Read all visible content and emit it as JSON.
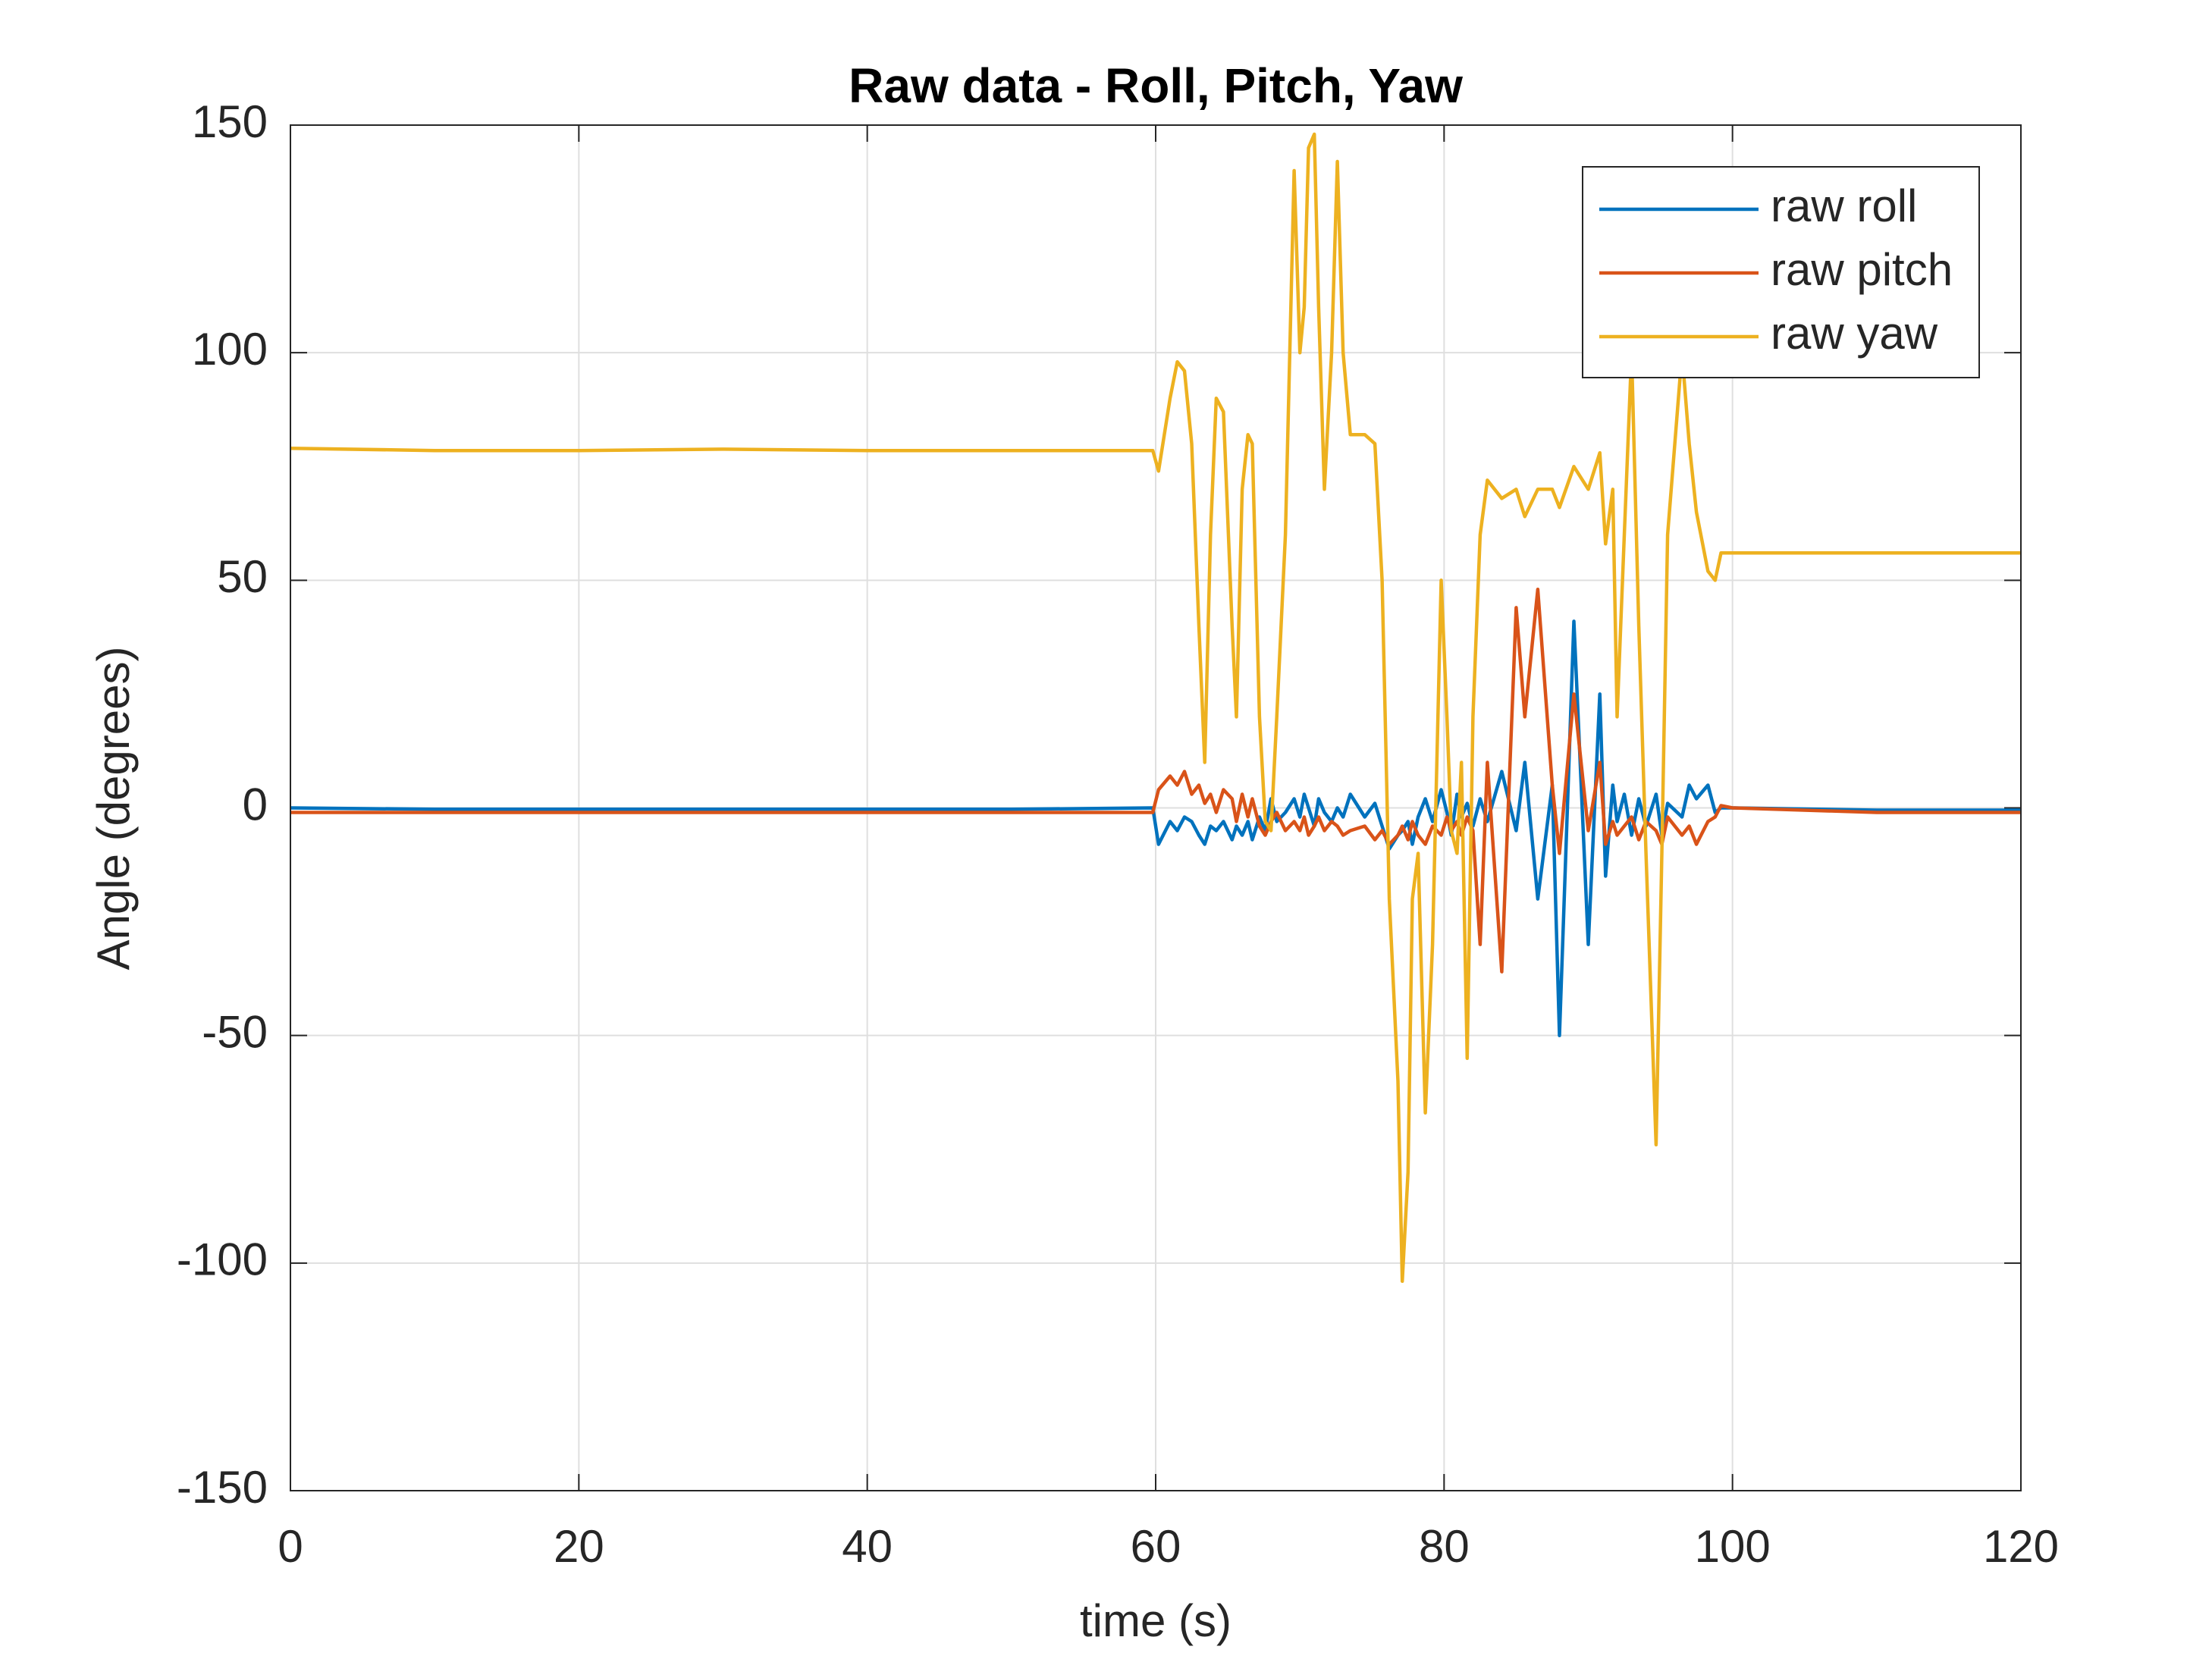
{
  "chart_data": {
    "type": "line",
    "title": "Raw data - Roll, Pitch, Yaw",
    "x_label": "time (s)",
    "y_label": "Angle (degrees)",
    "xlim": [
      0,
      120
    ],
    "xticks": [
      0,
      20,
      40,
      60,
      80,
      100,
      120
    ],
    "ylim": [
      -150,
      150
    ],
    "yticks": [
      -150,
      -100,
      -50,
      0,
      50,
      100,
      150
    ],
    "grid": true,
    "legend": "northeast",
    "x": [
      0,
      10,
      20,
      30,
      40,
      50,
      59.8,
      60.2,
      61,
      61.5,
      62,
      62.5,
      63,
      63.4,
      63.8,
      64.2,
      64.7,
      65.3,
      65.6,
      66,
      66.4,
      66.7,
      67.2,
      67.6,
      68,
      68.4,
      69,
      69.6,
      70,
      70.3,
      70.6,
      71,
      71.3,
      71.7,
      72.2,
      72.6,
      73,
      73.5,
      74.5,
      75.2,
      75.7,
      76.2,
      76.8,
      77.1,
      77.5,
      77.8,
      78.2,
      78.7,
      79.2,
      79.8,
      80.2,
      80.5,
      80.9,
      81.2,
      81.6,
      82,
      82.5,
      83,
      84,
      85,
      85.6,
      86.5,
      87.5,
      88,
      89,
      90,
      90.8,
      91.2,
      91.7,
      92,
      92.5,
      93,
      93.5,
      94,
      94.7,
      95.1,
      95.5,
      96.5,
      97,
      97.5,
      98.3,
      98.8,
      99.2,
      100,
      110,
      120
    ],
    "series": [
      {
        "name": "raw roll",
        "color": "#0072BD",
        "values": [
          0,
          -0.3,
          -0.3,
          -0.3,
          -0.3,
          -0.3,
          0,
          -8,
          -3,
          -5,
          -2,
          -3,
          -6,
          -8,
          -4,
          -5,
          -3,
          -7,
          -4,
          -6,
          -3,
          -7,
          -2,
          -5,
          2,
          -3,
          -1,
          2,
          -2,
          3,
          0,
          -4,
          2,
          -1,
          -3,
          0,
          -2,
          3,
          -2,
          1,
          -4,
          -9,
          -6,
          -5,
          -3,
          -8,
          -2,
          2,
          -3,
          4,
          -1,
          -6,
          3,
          -2,
          1,
          -4,
          2,
          -3,
          8,
          -5,
          10,
          -20,
          5,
          -50,
          41,
          -30,
          25,
          -15,
          5,
          -3,
          3,
          -6,
          2,
          -4,
          3,
          -6,
          1,
          -2,
          5,
          2,
          5,
          -1,
          0,
          0,
          -0.5,
          -0.5
        ]
      },
      {
        "name": "raw pitch",
        "color": "#D95319",
        "values": [
          -1,
          -1,
          -1,
          -1,
          -1,
          -1,
          -1,
          4,
          7,
          5,
          8,
          3,
          5,
          1,
          3,
          -1,
          4,
          2,
          -3,
          3,
          -2,
          2,
          -4,
          -6,
          -3,
          -1,
          -5,
          -3,
          -5,
          -2,
          -6,
          -4,
          -2,
          -5,
          -3,
          -4,
          -6,
          -5,
          -4,
          -7,
          -5,
          -8,
          -6,
          -4,
          -7,
          -3,
          -6,
          -8,
          -4,
          -6,
          -2,
          -5,
          -3,
          -6,
          -2,
          -5,
          -30,
          10,
          -36,
          44,
          20,
          48,
          5,
          -10,
          25,
          -5,
          10,
          -8,
          -3,
          -6,
          -4,
          -2,
          -7,
          -3,
          -5,
          -8,
          -2,
          -6,
          -4,
          -8,
          -3,
          -2,
          0.5,
          0,
          -1,
          -1
        ]
      },
      {
        "name": "raw yaw",
        "color": "#EDB120",
        "values": [
          79,
          78.5,
          78.5,
          78.8,
          78.5,
          78.5,
          78.5,
          74,
          90,
          98,
          96,
          80,
          40,
          10,
          60,
          90,
          87,
          40,
          20,
          70,
          82,
          80,
          20,
          -3,
          -5,
          20,
          60,
          140,
          100,
          110,
          145,
          148,
          110,
          70,
          100,
          142,
          100,
          82,
          82,
          80,
          50,
          -20,
          -60,
          -104,
          -80,
          -20,
          -10,
          -67,
          -30,
          50,
          20,
          -5,
          -10,
          10,
          -55,
          20,
          60,
          72,
          68,
          70,
          64,
          70,
          70,
          66,
          75,
          70,
          78,
          58,
          70,
          20,
          60,
          100,
          40,
          -10,
          -74,
          -10,
          60,
          100,
          80,
          65,
          52,
          50,
          56,
          56,
          56,
          56
        ]
      }
    ]
  }
}
